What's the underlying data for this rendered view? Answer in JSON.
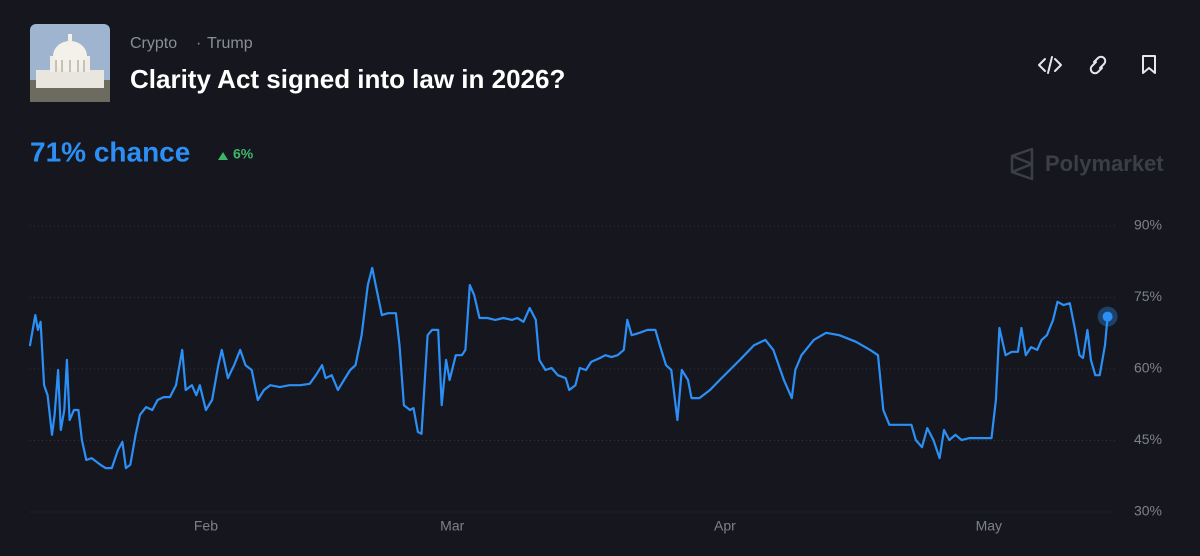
{
  "tags": [
    "Crypto",
    "Trump"
  ],
  "headline": "71% chance",
  "change": "6%",
  "brand": "Polymarket",
  "chart_data": {
    "type": "line",
    "title": "Clarity Act signed into law in 2026?",
    "color": "#2b8ff6",
    "grid": true,
    "xlim": [
      12,
      135
    ],
    "xticks": [
      {
        "value": 32,
        "label": "Feb"
      },
      {
        "value": 60,
        "label": "Mar"
      },
      {
        "value": 91,
        "label": "Apr"
      },
      {
        "value": 121,
        "label": "May"
      }
    ],
    "ylim": [
      30,
      90
    ],
    "yticks": [
      {
        "value": 30,
        "label": "30%"
      },
      {
        "value": 45,
        "label": "45%"
      },
      {
        "value": 60,
        "label": "60%"
      },
      {
        "value": 75,
        "label": "75%"
      },
      {
        "value": 90,
        "label": "90%"
      }
    ],
    "x": [
      12.0,
      12.6,
      12.9,
      13.2,
      13.6,
      14.0,
      14.5,
      14.8,
      15.2,
      15.5,
      15.9,
      16.2,
      16.5,
      17.0,
      17.5,
      17.9,
      18.4,
      19.0,
      20.0,
      20.6,
      21.3,
      22.0,
      22.5,
      22.9,
      23.4,
      24.0,
      24.5,
      25.2,
      25.9,
      26.5,
      27.2,
      27.9,
      28.6,
      29.3,
      29.7,
      30.4,
      30.9,
      31.3,
      32.0,
      32.7,
      33.4,
      33.8,
      34.5,
      35.2,
      35.9,
      36.5,
      37.2,
      37.9,
      38.6,
      39.3,
      40.4,
      41.5,
      42.7,
      43.8,
      44.5,
      45.2,
      45.6,
      46.3,
      47.0,
      47.7,
      48.4,
      49.0,
      49.7,
      50.4,
      50.9,
      51.3,
      52.0,
      52.7,
      53.6,
      54.0,
      54.5,
      55.2,
      55.6,
      56.1,
      56.5,
      57.2,
      57.7,
      58.4,
      58.8,
      59.3,
      59.7,
      60.4,
      61.1,
      61.5,
      62.0,
      62.5,
      63.1,
      64.0,
      64.9,
      65.8,
      66.8,
      67.4,
      68.1,
      68.8,
      69.5,
      69.9,
      70.6,
      71.3,
      72.0,
      72.9,
      73.3,
      74.0,
      74.5,
      75.2,
      75.8,
      76.8,
      77.4,
      78.1,
      78.8,
      79.5,
      79.9,
      80.4,
      81.3,
      82.2,
      83.1,
      83.6,
      84.3,
      84.9,
      85.6,
      86.1,
      86.8,
      87.2,
      88.1,
      89.3,
      90.4,
      92.7,
      94.3,
      95.6,
      96.5,
      97.7,
      98.6,
      99.0,
      99.7,
      101.1,
      102.5,
      104.0,
      105.9,
      107.5,
      108.4,
      109.0,
      109.7,
      110.9,
      112.2,
      112.7,
      113.4,
      114.0,
      114.7,
      115.4,
      115.9,
      116.5,
      117.2,
      117.9,
      118.8,
      120.0,
      121.3,
      121.8,
      122.2,
      122.9,
      123.6,
      124.3,
      124.7,
      125.2,
      125.8,
      126.5,
      127.0,
      127.6,
      128.3,
      128.8,
      129.5,
      130.2,
      130.8,
      131.3,
      131.7,
      132.2,
      132.6,
      133.1,
      133.6,
      134.2,
      134.5
    ],
    "values": [
      65.0,
      71.3,
      68.2,
      69.9,
      56.6,
      54.5,
      46.2,
      50.4,
      59.8,
      47.2,
      51.4,
      61.9,
      49.3,
      51.4,
      51.4,
      45.1,
      40.9,
      41.3,
      39.9,
      39.2,
      39.2,
      43.0,
      44.7,
      39.2,
      39.9,
      46.2,
      50.4,
      52.0,
      51.4,
      53.5,
      54.1,
      54.1,
      56.6,
      64.0,
      55.6,
      56.6,
      54.5,
      56.6,
      51.4,
      53.5,
      60.8,
      64.0,
      58.1,
      60.8,
      64.0,
      60.8,
      59.8,
      53.5,
      55.6,
      56.6,
      56.2,
      56.6,
      56.6,
      56.9,
      58.7,
      60.8,
      58.1,
      58.7,
      55.6,
      57.7,
      59.8,
      60.8,
      67.1,
      77.6,
      81.2,
      77.6,
      71.3,
      71.7,
      71.7,
      65.0,
      52.4,
      51.4,
      51.8,
      46.8,
      46.4,
      67.1,
      68.2,
      68.2,
      52.4,
      61.9,
      57.7,
      62.9,
      62.9,
      64.0,
      77.6,
      75.5,
      70.7,
      70.7,
      70.3,
      70.7,
      70.3,
      70.7,
      69.9,
      72.8,
      70.3,
      61.9,
      59.8,
      60.2,
      58.7,
      58.1,
      55.6,
      56.6,
      60.2,
      59.8,
      61.5,
      62.3,
      62.9,
      62.5,
      62.9,
      64.0,
      70.3,
      67.1,
      67.6,
      68.2,
      68.2,
      65.0,
      60.8,
      59.8,
      49.3,
      59.8,
      57.7,
      53.9,
      53.9,
      55.6,
      57.7,
      61.9,
      65.0,
      66.1,
      64.0,
      57.7,
      53.9,
      59.8,
      62.9,
      66.1,
      67.6,
      67.1,
      65.7,
      64.0,
      62.9,
      51.4,
      48.3,
      48.3,
      48.3,
      45.1,
      43.6,
      47.6,
      45.1,
      41.3,
      47.2,
      45.1,
      46.2,
      45.1,
      45.5,
      45.5,
      45.5,
      53.5,
      68.6,
      62.9,
      63.6,
      63.6,
      68.6,
      62.9,
      64.6,
      64.0,
      66.1,
      67.1,
      70.3,
      74.1,
      73.4,
      73.8,
      68.2,
      62.9,
      62.3,
      68.2,
      61.9,
      58.7,
      58.7,
      65.0,
      71
    ]
  }
}
